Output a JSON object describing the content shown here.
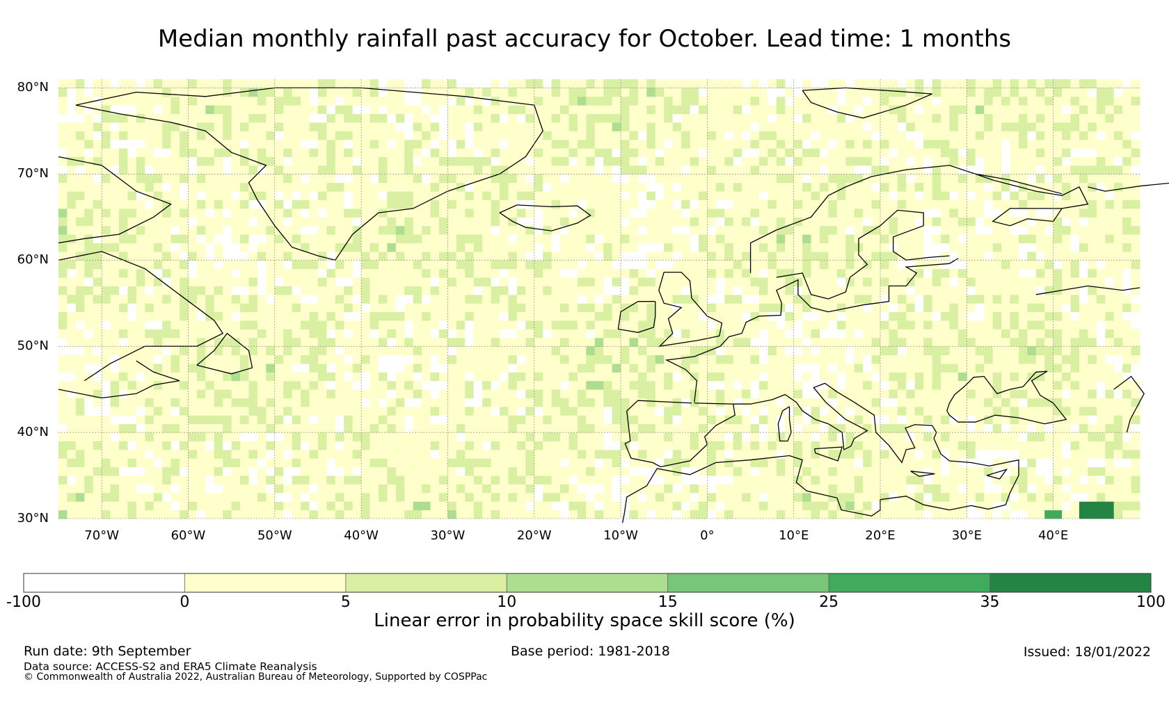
{
  "title": "Median monthly rainfall past accuracy for October. Lead time: 1 months",
  "map": {
    "lon_range": [
      -75,
      50
    ],
    "lat_range": [
      30,
      81
    ],
    "lat_ticks": [
      "80°N",
      "70°N",
      "60°N",
      "50°N",
      "40°N",
      "30°N"
    ],
    "lon_ticks": [
      "70°W",
      "60°W",
      "50°W",
      "40°W",
      "30°W",
      "20°W",
      "10°W",
      "0°",
      "10°E",
      "20°E",
      "30°E",
      "40°E"
    ]
  },
  "colorbar": {
    "title": "Linear error in probability space skill score (%)",
    "ticks": [
      "-100",
      "0",
      "5",
      "10",
      "15",
      "25",
      "35",
      "100"
    ],
    "bins": [
      {
        "range": "-100 to 0",
        "color": "#ffffff"
      },
      {
        "range": "0 to 5",
        "color": "#ffffcc"
      },
      {
        "range": "5 to 10",
        "color": "#d9f0a3"
      },
      {
        "range": "10 to 15",
        "color": "#addd8e"
      },
      {
        "range": "15 to 25",
        "color": "#78c679"
      },
      {
        "range": "25 to 35",
        "color": "#41ab5d"
      },
      {
        "range": "35 to 100",
        "color": "#238443"
      }
    ]
  },
  "footer": {
    "run_date": "Run date: 9th September",
    "base_period": "Base period: 1981-2018",
    "issued": "Issued: 18/01/2022",
    "data_source": "Data source: ACCESS-S2 and ERA5 Climate Reanalysis",
    "copyright": "© Commonwealth of Australia 2022, Australian Bureau of Meteorology, Supported by COSPPac"
  }
}
